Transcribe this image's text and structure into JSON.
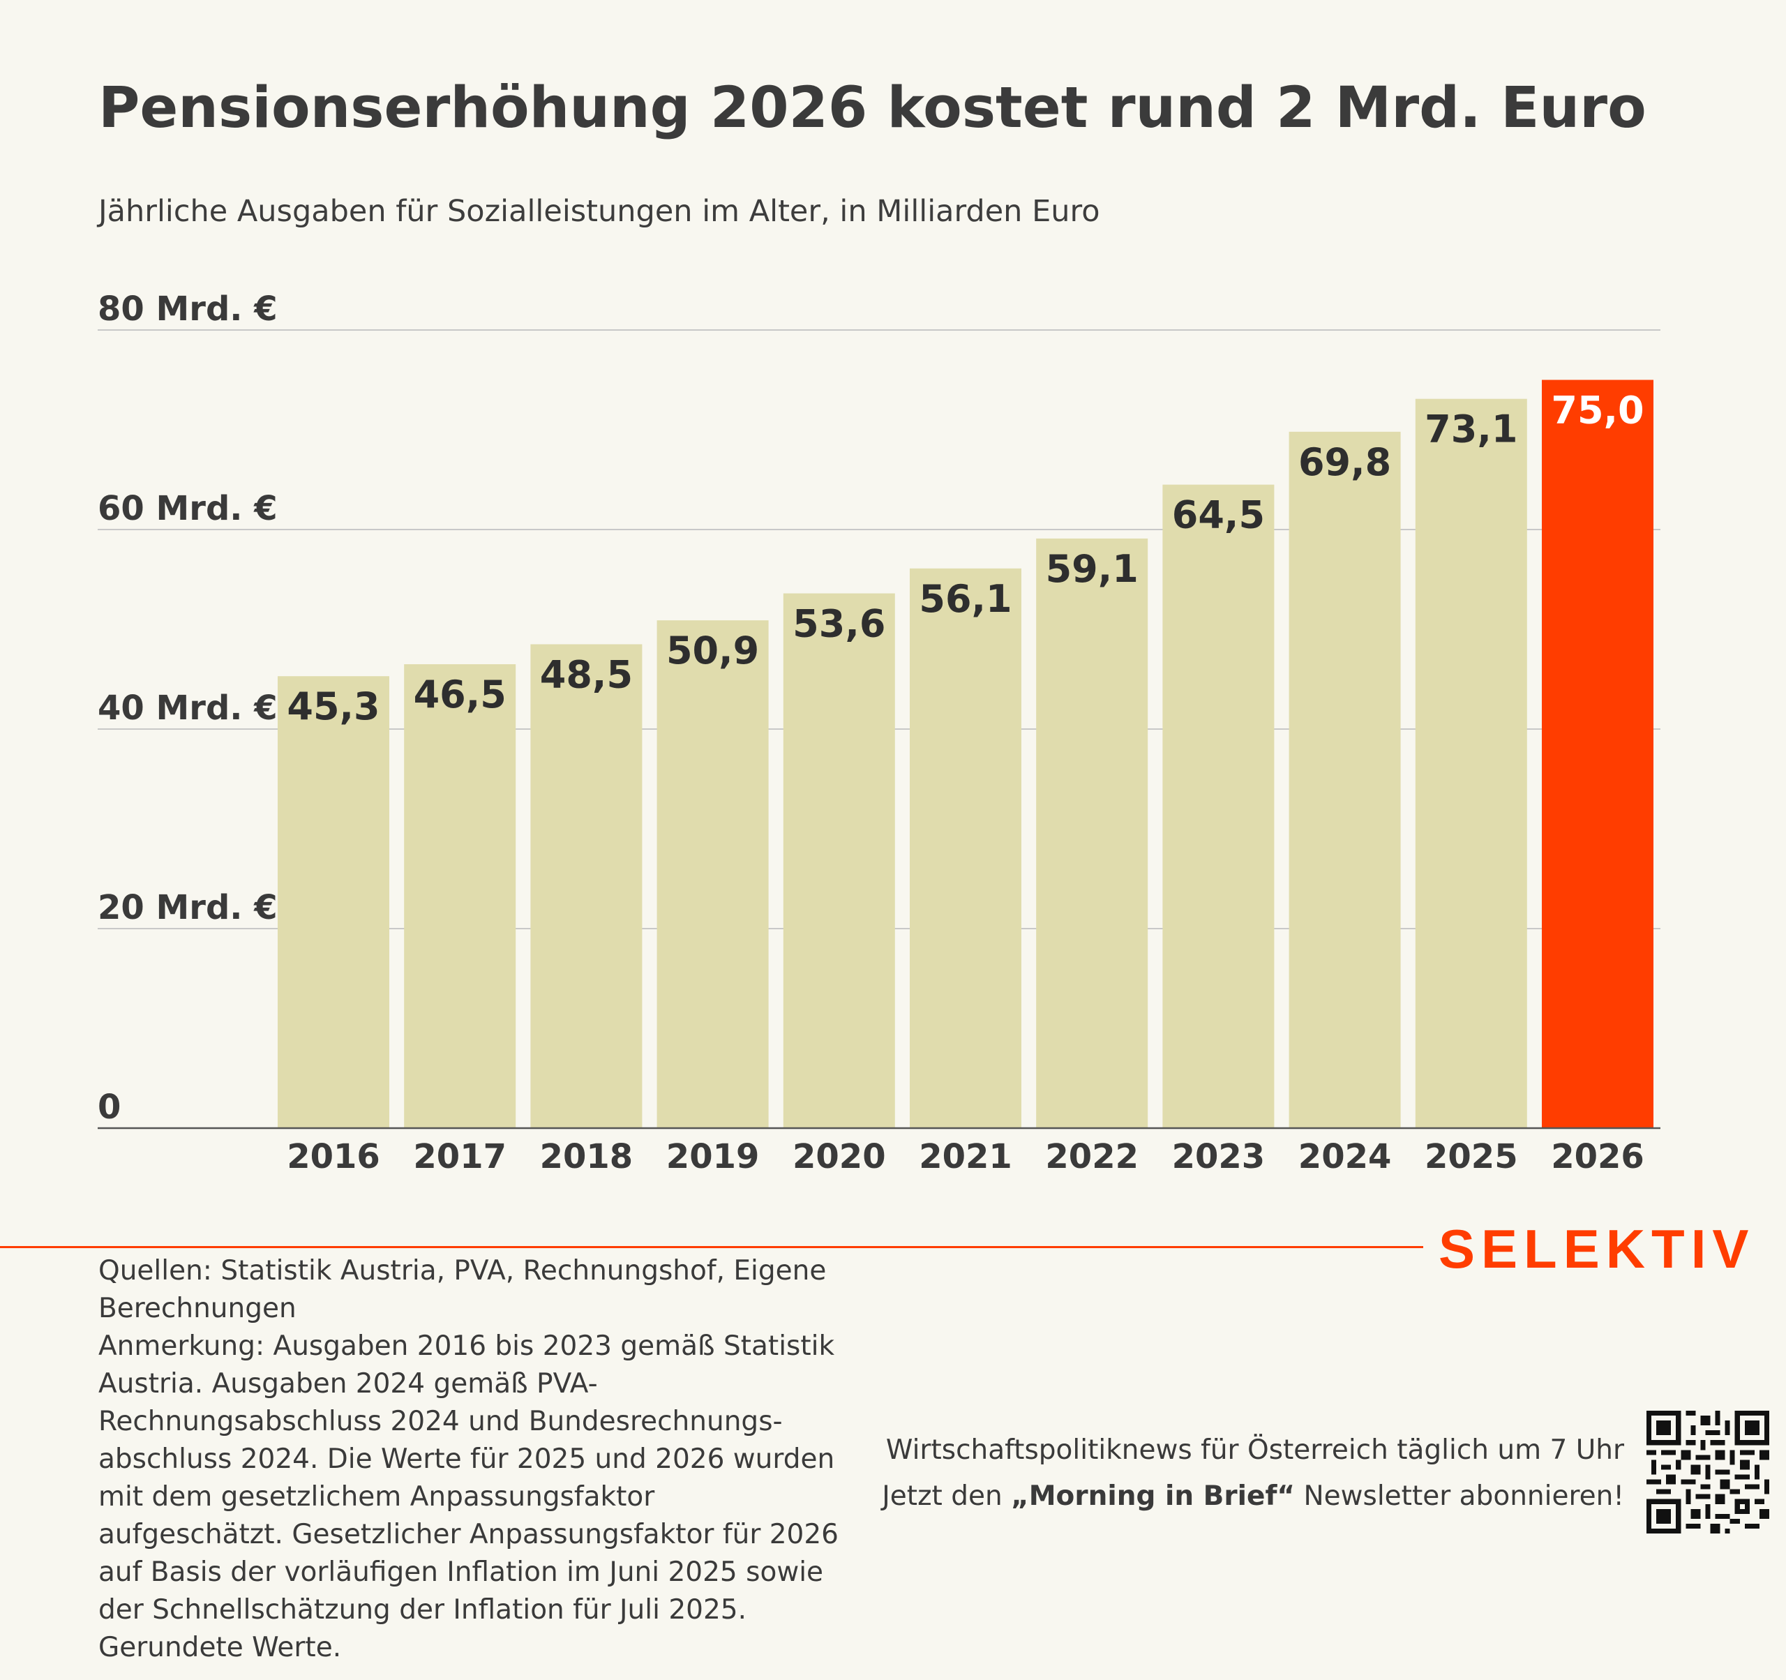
{
  "header": {
    "title": "Pensionserhöhung 2026 kostet rund 2 Mrd. Euro",
    "subtitle": "Jährliche Ausgaben für Sozialleistungen im Alter, in Milliarden Euro"
  },
  "chart_data": {
    "type": "bar",
    "title": "Pensionserhöhung 2026 kostet rund 2 Mrd. Euro",
    "subtitle": "Jährliche Ausgaben für Sozialleistungen im Alter, in Milliarden Euro",
    "xlabel": "",
    "ylabel": "",
    "ylim": [
      0,
      80
    ],
    "yticks": [
      0,
      20,
      40,
      60,
      80
    ],
    "ytick_labels": [
      "0",
      "20 Mrd. €",
      "40 Mrd. €",
      "60 Mrd. €",
      "80 Mrd. €"
    ],
    "grid": true,
    "categories": [
      "2016",
      "2017",
      "2018",
      "2019",
      "2020",
      "2021",
      "2022",
      "2023",
      "2024",
      "2025",
      "2026"
    ],
    "values": [
      45.3,
      46.5,
      48.5,
      50.9,
      53.6,
      56.1,
      59.1,
      64.5,
      69.8,
      73.1,
      75.0
    ],
    "value_labels": [
      "45,3",
      "46,5",
      "48,5",
      "50,9",
      "53,6",
      "56,1",
      "59,1",
      "64,5",
      "69,8",
      "73,1",
      "75,0"
    ],
    "bar_color": "#e0dcad",
    "highlight_index": 10,
    "highlight_color": "#ff3d00",
    "label_color": "#2e2e2e",
    "highlight_label_color": "#ffffff",
    "grid_color": "#c8c8c8",
    "axis_color": "#555555"
  },
  "brand": {
    "logo": "SELEKTIV",
    "accent_color": "#ff3d00"
  },
  "footer": {
    "sources": "Quellen: Statistik Austria, PVA, Rechnungshof, Eigene Berechnungen",
    "note": "Anmerkung: Ausgaben 2016 bis 2023 gemäß Statistik Austria. Ausgaben 2024 gemäß PVA-Rechnungsabschluss 2024 und Bundesrechnungs-abschluss 2024. Die Werte für 2025 und 2026 wurden mit dem gesetzlichem Anpassungsfaktor aufgeschätzt. Gesetzlicher Anpassungsfaktor für 2026 auf Basis der vorläufigen Inflation im Juni 2025 sowie der Schnellschätzung der Inflation für Juli 2025. Gerundete Werte.",
    "promo_line1": "Wirtschaftspolitiknews für Österreich täglich um 7 Uhr",
    "promo_line2_pre": "Jetzt den ",
    "promo_line2_bold": "„Morning in Brief“",
    "promo_line2_post": " Newsletter abonnieren!",
    "qr_icon": "qr-code-icon"
  }
}
